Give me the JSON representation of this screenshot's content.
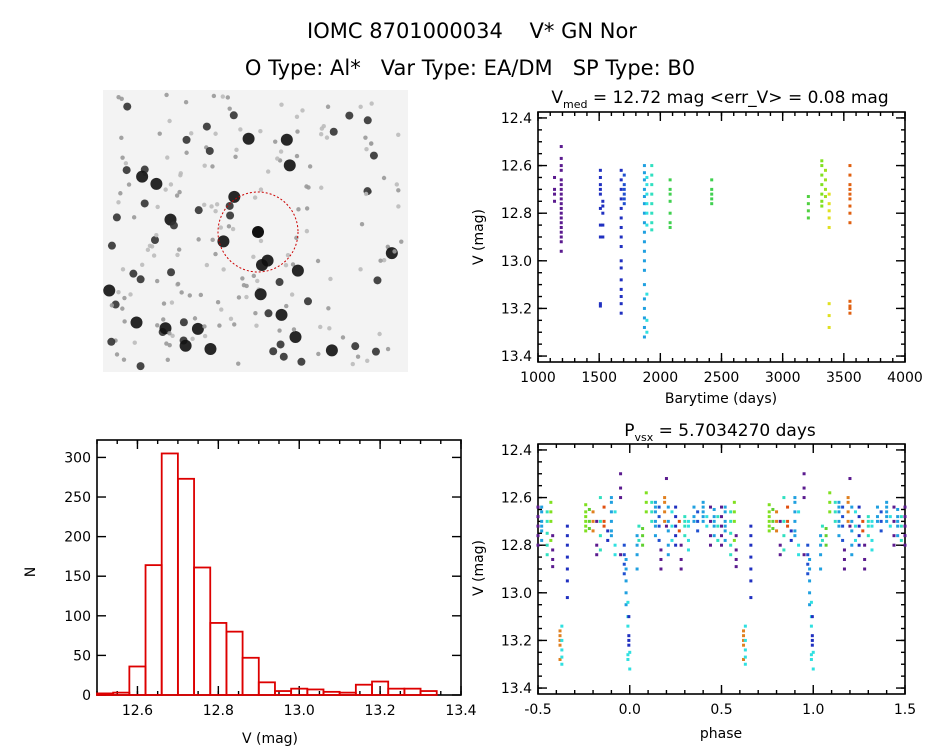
{
  "header": {
    "line1": "IOMC 8701000034    V* GN Nor",
    "line2": "O Type: Al*   Var Type: EA/DM   SP Type: B0"
  },
  "finder_image": {
    "description_icon": "star-field-image",
    "aperture_color": "#cc0000"
  },
  "chart_data": [
    {
      "type": "scatter",
      "title_main": "V",
      "title_sub": "med",
      "title_rest": " = 12.72 mag <err_V> = 0.08 mag",
      "xlabel": "Barytime (days)",
      "ylabel": "V (mag)",
      "xlim": [
        1000,
        4000
      ],
      "ylim": [
        13.425,
        12.375
      ],
      "y_reversed": true,
      "xticks": [
        1000,
        1500,
        2000,
        2500,
        3000,
        3500,
        4000
      ],
      "xtick_labels": [
        "1000",
        "1500",
        "2000",
        "2500",
        "3000",
        "3500",
        "4000"
      ],
      "yticks": [
        12.4,
        12.6,
        12.8,
        13.0,
        13.2,
        13.4
      ],
      "ytick_labels": [
        "12.4",
        "12.6",
        "12.8",
        "13.0",
        "13.2",
        "13.4"
      ],
      "columns": [
        {
          "t": 1135,
          "color": "#5b1b8f",
          "v": [
            12.65,
            12.7,
            12.72,
            12.75
          ]
        },
        {
          "t": 1190,
          "color": "#5b1b8f",
          "v": [
            12.52,
            12.57,
            12.6,
            12.62,
            12.66,
            12.68,
            12.7,
            12.72,
            12.74,
            12.76,
            12.78,
            12.8,
            12.82,
            12.84,
            12.86,
            12.88,
            12.9,
            12.92,
            12.96
          ]
        },
        {
          "t": 1510,
          "color": "#2030c0",
          "v": [
            12.62,
            12.65,
            12.68,
            12.7,
            12.72,
            12.78,
            12.85,
            12.9,
            13.18,
            13.19
          ]
        },
        {
          "t": 1530,
          "color": "#2030c0",
          "v": [
            12.75,
            12.77,
            12.8,
            12.85,
            12.9
          ]
        },
        {
          "t": 1680,
          "color": "#2030c0",
          "v": [
            12.62,
            12.66,
            12.7,
            12.74,
            12.78,
            12.82,
            12.86,
            12.9,
            12.94,
            13.0,
            13.03,
            13.08,
            13.12,
            13.15,
            13.18,
            13.22
          ]
        },
        {
          "t": 1705,
          "color": "#2050d0",
          "v": [
            12.64,
            12.68,
            12.7,
            12.72,
            12.74,
            12.76
          ]
        },
        {
          "t": 1870,
          "color": "#20a0e0",
          "v": [
            12.6,
            12.63,
            12.66,
            12.7,
            12.73,
            12.76,
            12.8,
            12.84,
            12.88,
            12.92,
            12.96,
            13.0,
            13.04,
            13.1,
            13.16,
            13.2,
            13.24,
            13.28,
            13.32
          ]
        },
        {
          "t": 1890,
          "color": "#30e0e0",
          "v": [
            12.65,
            12.68,
            12.72,
            12.76,
            12.8,
            12.85,
            13.14,
            13.25,
            13.3
          ]
        },
        {
          "t": 1930,
          "color": "#30e0c0",
          "v": [
            12.6,
            12.64,
            12.68,
            12.72,
            12.76,
            12.8,
            12.84,
            12.87
          ]
        },
        {
          "t": 2080,
          "color": "#40d050",
          "v": [
            12.66,
            12.7,
            12.72,
            12.75,
            12.8,
            12.84,
            12.86
          ]
        },
        {
          "t": 2420,
          "color": "#40d050",
          "v": [
            12.66,
            12.7,
            12.72,
            12.74,
            12.76
          ]
        },
        {
          "t": 3210,
          "color": "#50d040",
          "v": [
            12.73,
            12.76,
            12.79,
            12.82
          ]
        },
        {
          "t": 3320,
          "color": "#80e020",
          "v": [
            12.58,
            12.6,
            12.64,
            12.68,
            12.72,
            12.75,
            12.77
          ]
        },
        {
          "t": 3350,
          "color": "#a0e020",
          "v": [
            12.62,
            12.66,
            12.7,
            12.73
          ]
        },
        {
          "t": 3380,
          "color": "#e0e020",
          "v": [
            12.72,
            12.76,
            12.79,
            12.82,
            12.86,
            13.18,
            13.23,
            13.28
          ]
        },
        {
          "t": 3550,
          "color": "#e06010",
          "v": [
            12.6,
            12.64,
            12.68,
            12.7,
            12.72,
            12.74,
            12.77,
            12.8,
            12.84,
            13.17,
            13.19,
            13.2,
            13.22
          ]
        }
      ]
    },
    {
      "type": "bar",
      "subtype": "histogram",
      "xlabel": "V (mag)",
      "ylabel": "N",
      "xlim": [
        12.5,
        13.4
      ],
      "ylim": [
        0,
        322
      ],
      "bin_width": 0.04,
      "bar_color": "#dd0000",
      "xticks": [
        12.6,
        12.8,
        13.0,
        13.2,
        13.4
      ],
      "xtick_labels": [
        "12.6",
        "12.8",
        "13.0",
        "13.2",
        "13.4"
      ],
      "yticks": [
        0,
        50,
        100,
        150,
        200,
        250,
        300
      ],
      "ytick_labels": [
        "0",
        "50",
        "100",
        "150",
        "200",
        "250",
        "300"
      ],
      "bin_starts": [
        12.5,
        12.54,
        12.58,
        12.62,
        12.66,
        12.7,
        12.74,
        12.78,
        12.82,
        12.86,
        12.9,
        12.94,
        12.98,
        13.02,
        13.06,
        13.1,
        13.14,
        13.18,
        13.22,
        13.26,
        13.3
      ],
      "counts": [
        2,
        3,
        36,
        164,
        305,
        273,
        161,
        91,
        80,
        47,
        16,
        5,
        8,
        7,
        4,
        3,
        13,
        17,
        8,
        8,
        5
      ]
    },
    {
      "type": "scatter",
      "title_main": "P",
      "title_sub": "vsx",
      "title_rest": " = 5.7034270 days",
      "xlabel": "phase",
      "ylabel": "V (mag)",
      "xlim": [
        -0.5,
        1.5
      ],
      "ylim": [
        13.425,
        12.375
      ],
      "y_reversed": true,
      "xticks": [
        -0.5,
        0.0,
        0.5,
        1.0,
        1.5
      ],
      "xtick_labels": [
        "-0.5",
        "0.0",
        "0.5",
        "1.0",
        "1.5"
      ],
      "yticks": [
        12.4,
        12.6,
        12.8,
        13.0,
        13.2,
        13.4
      ],
      "ytick_labels": [
        "12.4",
        "12.6",
        "12.8",
        "13.0",
        "13.2",
        "13.4"
      ],
      "columns": [
        {
          "p": 0.0,
          "color": "#30e0e0",
          "v": [
            13.25,
            13.32
          ]
        },
        {
          "p": 0.04,
          "color": "#20a0e0",
          "v": [
            12.76,
            12.8,
            12.84,
            12.9
          ]
        },
        {
          "p": 0.05,
          "color": "#30e0c0",
          "v": [
            12.72,
            12.78
          ]
        },
        {
          "p": 0.07,
          "color": "#60d030",
          "v": [
            12.73,
            12.76,
            12.8
          ]
        },
        {
          "p": 0.09,
          "color": "#80e020",
          "v": [
            12.58,
            12.62,
            12.66
          ]
        },
        {
          "p": 0.12,
          "color": "#30e0c0",
          "v": [
            12.62,
            12.66,
            12.7
          ]
        },
        {
          "p": 0.14,
          "color": "#20a0e0",
          "v": [
            12.62,
            12.64,
            12.66,
            12.7,
            12.72,
            12.76
          ]
        },
        {
          "p": 0.16,
          "color": "#2050d0",
          "v": [
            12.64,
            12.68,
            12.72,
            12.78
          ]
        },
        {
          "p": 0.17,
          "color": "#5b1b8f",
          "v": [
            12.82,
            12.86,
            12.9
          ]
        },
        {
          "p": 0.19,
          "color": "#e08020",
          "v": [
            12.6,
            12.62,
            12.66,
            12.7
          ]
        },
        {
          "p": 0.2,
          "color": "#5b1b8f",
          "v": [
            12.52,
            12.72
          ]
        },
        {
          "p": 0.21,
          "color": "#20a0e0",
          "v": [
            12.64,
            12.7,
            12.74,
            12.8,
            12.84
          ]
        },
        {
          "p": 0.23,
          "color": "#30e0e0",
          "v": [
            12.66,
            12.72,
            12.78
          ]
        },
        {
          "p": 0.25,
          "color": "#2030c0",
          "v": [
            12.64,
            12.68,
            12.72,
            12.76,
            12.8
          ]
        },
        {
          "p": 0.27,
          "color": "#e05010",
          "v": [
            12.7,
            12.74
          ]
        },
        {
          "p": 0.28,
          "color": "#5b1b8f",
          "v": [
            12.8,
            12.86,
            12.9
          ]
        },
        {
          "p": 0.3,
          "color": "#30e0c0",
          "v": [
            12.68,
            12.7,
            12.72,
            12.76
          ]
        },
        {
          "p": 0.32,
          "color": "#30e0e0",
          "v": [
            12.7,
            12.72,
            12.78,
            12.82
          ]
        },
        {
          "p": 0.35,
          "color": "#20a0e0",
          "v": [
            12.64,
            12.68,
            12.7
          ]
        },
        {
          "p": 0.37,
          "color": "#2050d0",
          "v": [
            12.66,
            12.7,
            12.74
          ]
        },
        {
          "p": 0.4,
          "color": "#20a0e0",
          "v": [
            12.62,
            12.64,
            12.66,
            12.68,
            12.7
          ]
        },
        {
          "p": 0.42,
          "color": "#30e0e0",
          "v": [
            12.68,
            12.72
          ]
        },
        {
          "p": 0.44,
          "color": "#5b1b8f",
          "v": [
            12.64,
            12.7,
            12.76,
            12.8
          ]
        },
        {
          "p": 0.46,
          "color": "#20a0e0",
          "v": [
            12.65,
            12.68,
            12.7,
            12.72,
            12.76
          ]
        },
        {
          "p": 0.48,
          "color": "#30e0c0",
          "v": [
            12.68,
            12.72,
            12.78
          ]
        },
        {
          "p": 0.5,
          "color": "#5b1b8f",
          "v": [
            12.64,
            12.68,
            12.72,
            12.76,
            12.8
          ]
        },
        {
          "p": 0.52,
          "color": "#20a0e0",
          "v": [
            12.64,
            12.66,
            12.7,
            12.72,
            12.74,
            12.78
          ]
        },
        {
          "p": 0.55,
          "color": "#30e0c0",
          "v": [
            12.66,
            12.7,
            12.75,
            12.8,
            12.84
          ]
        },
        {
          "p": 0.57,
          "color": "#80e020",
          "v": [
            12.62,
            12.66,
            12.7,
            12.78
          ]
        },
        {
          "p": 0.58,
          "color": "#5b1b8f",
          "v": [
            12.76,
            12.82,
            12.86,
            12.89
          ]
        },
        {
          "p": 0.62,
          "color": "#e08020",
          "v": [
            13.16,
            13.18,
            13.2,
            13.22,
            13.28
          ]
        },
        {
          "p": 0.63,
          "color": "#30e0e0",
          "v": [
            13.14,
            13.2,
            13.24,
            13.27,
            13.3
          ]
        },
        {
          "p": 0.66,
          "color": "#2030c0",
          "v": [
            12.72,
            12.76,
            12.8,
            12.85,
            12.9,
            12.95,
            13.02
          ]
        },
        {
          "p": 0.76,
          "color": "#80e020",
          "v": [
            12.63,
            12.66,
            12.68,
            12.7,
            12.72,
            12.74
          ]
        },
        {
          "p": 0.78,
          "color": "#60d030",
          "v": [
            12.65,
            12.7,
            12.73
          ]
        },
        {
          "p": 0.8,
          "color": "#e08020",
          "v": [
            12.66,
            12.7,
            12.74
          ]
        },
        {
          "p": 0.82,
          "color": "#5b1b8f",
          "v": [
            12.7,
            12.8,
            12.84
          ]
        },
        {
          "p": 0.84,
          "color": "#30e0c0",
          "v": [
            12.6,
            12.7,
            12.76,
            12.82
          ]
        },
        {
          "p": 0.86,
          "color": "#e05010",
          "v": [
            12.64,
            12.7,
            12.72
          ]
        },
        {
          "p": 0.88,
          "color": "#2030c0",
          "v": [
            12.74,
            12.78
          ]
        },
        {
          "p": 0.9,
          "color": "#20a0e0",
          "v": [
            12.6,
            12.62,
            12.66,
            12.7,
            12.74,
            12.76
          ]
        },
        {
          "p": 0.92,
          "color": "#30e0e0",
          "v": [
            12.66,
            12.8,
            12.84
          ]
        },
        {
          "p": 0.95,
          "color": "#5b1b8f",
          "v": [
            12.5,
            12.56,
            12.6,
            12.84
          ]
        },
        {
          "p": 0.97,
          "color": "#2050d0",
          "v": [
            12.8,
            12.84,
            12.88,
            12.92
          ]
        },
        {
          "p": 0.98,
          "color": "#20a0e0",
          "v": [
            12.86,
            12.9,
            12.95,
            13.0,
            13.05
          ]
        },
        {
          "p": 0.99,
          "color": "#30e0e0",
          "v": [
            13.04,
            13.1,
            13.14,
            13.26,
            13.28
          ]
        },
        {
          "p": 0.995,
          "color": "#2030c0",
          "v": [
            13.1,
            13.18,
            13.2,
            13.22
          ]
        }
      ]
    }
  ]
}
